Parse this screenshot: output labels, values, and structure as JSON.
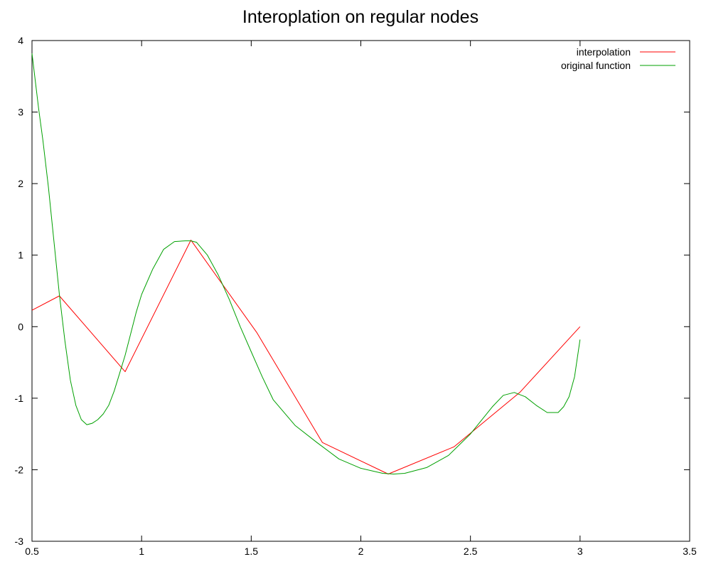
{
  "chart_data": {
    "type": "line",
    "title": "Interoplation on regular nodes",
    "xlabel": "",
    "ylabel": "",
    "xlim": [
      0.5,
      3.5
    ],
    "ylim": [
      -3,
      4
    ],
    "xticks": [
      "0.5",
      "1",
      "1.5",
      "2",
      "2.5",
      "3",
      "3.5"
    ],
    "yticks": [
      "-3",
      "-2",
      "-1",
      "0",
      "1",
      "2",
      "3",
      "4"
    ],
    "grid": false,
    "legend_position": "top-right",
    "series": [
      {
        "name": "interpolation",
        "color": "#ff0000",
        "x": [
          0.5,
          0.625,
          0.925,
          1.225,
          1.525,
          1.825,
          2.125,
          2.425,
          2.725,
          3.0
        ],
        "y": [
          0.23,
          0.43,
          -0.63,
          1.21,
          -0.08,
          -1.62,
          -2.06,
          -1.68,
          -0.92,
          0.0
        ]
      },
      {
        "name": "original function",
        "color": "#00a000",
        "x": [
          0.5,
          0.53,
          0.55,
          0.575,
          0.6,
          0.625,
          0.65,
          0.675,
          0.7,
          0.725,
          0.75,
          0.775,
          0.8,
          0.825,
          0.85,
          0.875,
          0.9,
          0.925,
          0.95,
          0.975,
          1.0,
          1.05,
          1.1,
          1.15,
          1.2,
          1.225,
          1.25,
          1.3,
          1.35,
          1.4,
          1.45,
          1.5,
          1.55,
          1.6,
          1.7,
          1.8,
          1.9,
          2.0,
          2.1,
          2.15,
          2.2,
          2.3,
          2.4,
          2.5,
          2.6,
          2.65,
          2.7,
          2.75,
          2.8,
          2.85,
          2.9,
          2.925,
          2.95,
          2.975,
          3.0
        ],
        "y": [
          3.82,
          3.05,
          2.6,
          1.95,
          1.2,
          0.45,
          -0.2,
          -0.75,
          -1.1,
          -1.3,
          -1.37,
          -1.35,
          -1.3,
          -1.22,
          -1.1,
          -0.9,
          -0.65,
          -0.4,
          -0.1,
          0.2,
          0.45,
          0.8,
          1.08,
          1.19,
          1.2,
          1.2,
          1.18,
          1.0,
          0.72,
          0.38,
          0.0,
          -0.35,
          -0.7,
          -1.02,
          -1.38,
          -1.62,
          -1.85,
          -1.98,
          -2.05,
          -2.06,
          -2.05,
          -1.97,
          -1.8,
          -1.5,
          -1.12,
          -0.96,
          -0.92,
          -0.98,
          -1.1,
          -1.2,
          -1.2,
          -1.12,
          -0.98,
          -0.7,
          -0.18
        ]
      }
    ]
  }
}
